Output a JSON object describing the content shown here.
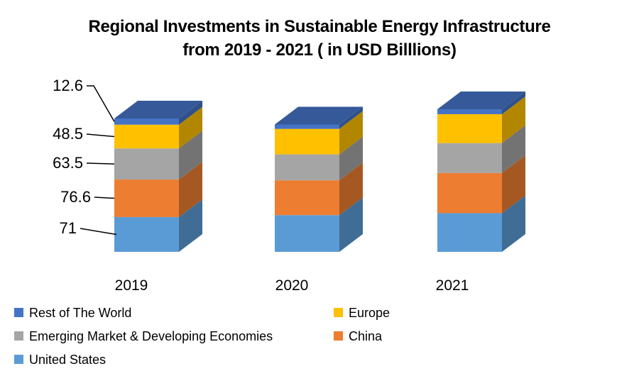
{
  "title": {
    "line1": "Regional Investments in Sustainable Energy Infrastructure",
    "line2": "from 2019 - 2021 ( in USD Billlions)"
  },
  "chart_data": {
    "type": "bar",
    "variant": "3d-stacked-column",
    "stacked": true,
    "categories": [
      "2019",
      "2020",
      "2021"
    ],
    "series": [
      {
        "name": "United States",
        "color": "#5B9BD5",
        "values": [
          71,
          75,
          79
        ]
      },
      {
        "name": "China",
        "color": "#ED7D31",
        "values": [
          76.6,
          71,
          82
        ]
      },
      {
        "name": "Emerging Market & Developing Economies",
        "color": "#A5A5A5",
        "values": [
          63.5,
          53,
          61
        ]
      },
      {
        "name": "Europe",
        "color": "#FFC000",
        "values": [
          48.5,
          52,
          59
        ]
      },
      {
        "name": "Rest of The World",
        "color": "#4472C4",
        "values": [
          12.6,
          9,
          10
        ]
      }
    ],
    "data_labels": {
      "year": "2019",
      "items": [
        "12.6",
        "48.5",
        "63.5",
        "76.6",
        "71"
      ]
    },
    "value_axis_visible": false,
    "gridlines": false,
    "legend_position": "bottom",
    "background": "#FFFFFF",
    "label_color": "#000000"
  },
  "legend": {
    "items": [
      {
        "label": "Rest of The World",
        "color": "#4472C4"
      },
      {
        "label": "Europe",
        "color": "#FFC000"
      },
      {
        "label": "Emerging Market & Developing Economies",
        "color": "#A5A5A5"
      },
      {
        "label": "China",
        "color": "#ED7D31"
      },
      {
        "label": "United States",
        "color": "#5B9BD5"
      }
    ]
  }
}
